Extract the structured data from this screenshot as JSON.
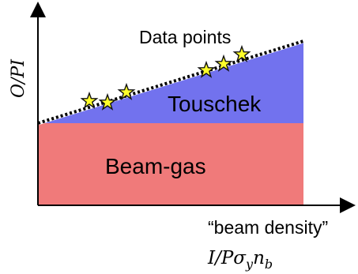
{
  "diagram": {
    "y_axis_label": "O/PI",
    "x_axis_label": "“beam density”",
    "x_axis_formula": {
      "main": "I/Pσ",
      "sub1": "y",
      "mid": "n",
      "sub2": "b"
    },
    "regions": [
      {
        "label": "Touschek",
        "color": "#7272ee"
      },
      {
        "label": "Beam-gas",
        "color": "#f07a7a"
      }
    ],
    "data_points_label": "Data points",
    "marker_color": "#ffff2a",
    "fit_line_style": "dotted black over white"
  }
}
